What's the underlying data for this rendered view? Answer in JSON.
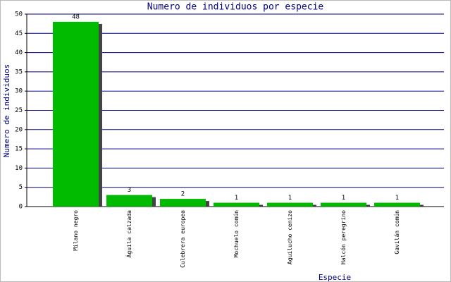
{
  "chart_data": {
    "type": "bar",
    "title": "Numero de individuos por especie",
    "x_label": "Especie",
    "y_label": "Numero de individuos",
    "categories": [
      "Milano negro",
      "Águila calzada",
      "Culebrera europea",
      "Mochuelo común",
      "Aguilucho cenizo",
      "Halcón peregrino",
      "Gavilán común"
    ],
    "values": [
      48,
      3,
      2,
      1,
      1,
      1,
      1
    ],
    "color": "#00bb00",
    "ylim": [
      0,
      50
    ],
    "yticks": [
      0,
      5,
      10,
      15,
      20,
      25,
      30,
      35,
      40,
      45,
      50
    ],
    "grid": true
  }
}
